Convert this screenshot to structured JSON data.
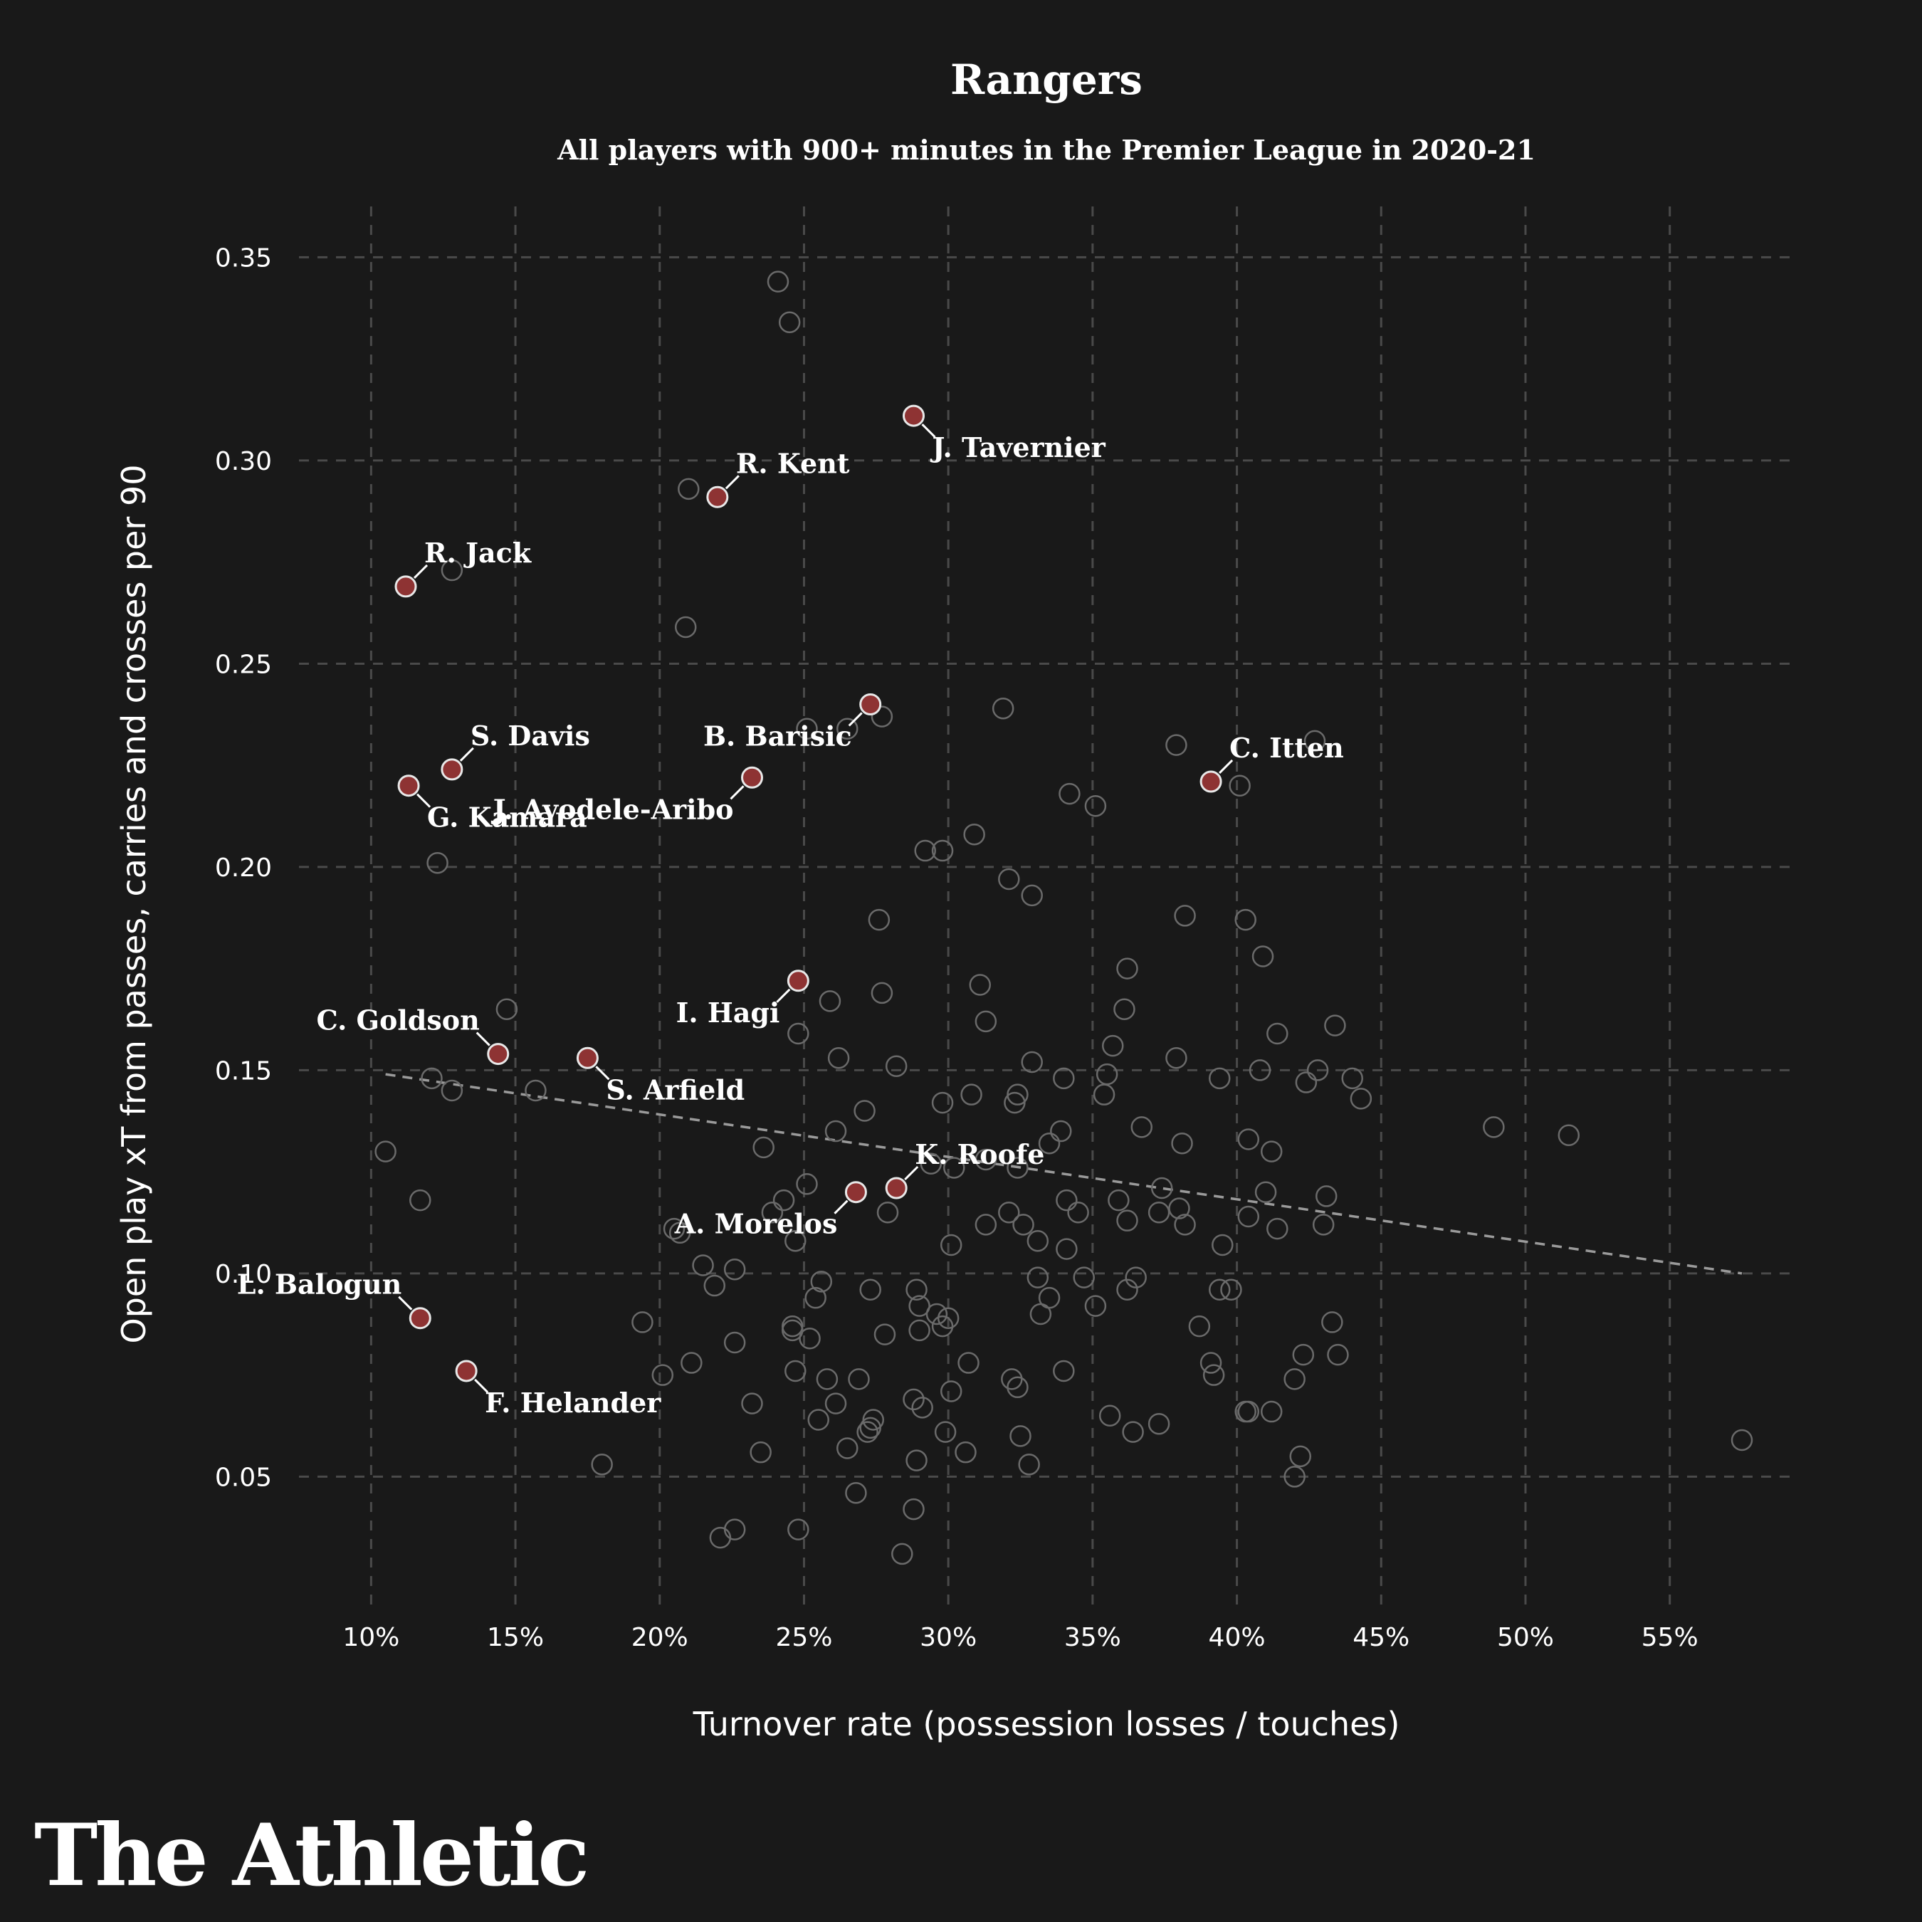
{
  "brand": {
    "logo_text": "The Athletic"
  },
  "colors": {
    "background": "#191919",
    "highlight": "#8e3333",
    "other_points": "#6a6a6a",
    "grid": "#4a4a4a",
    "trend": "#9a9a9a"
  },
  "chart_data": {
    "type": "scatter",
    "title": "Rangers",
    "subtitle": "All players with 900+ minutes in the Premier League in 2020-21",
    "xlabel": "Turnover rate (possession losses / touches)",
    "ylabel": "Open play xT from passes, carries and crosses per 90",
    "x_unit": "percent",
    "xlim": [
      7.5,
      59.3
    ],
    "ylim": [
      0.0175,
      0.3625
    ],
    "x_ticks": [
      10,
      15,
      20,
      25,
      30,
      35,
      40,
      45,
      50,
      55
    ],
    "x_tick_labels": [
      "10%",
      "15%",
      "20%",
      "25%",
      "30%",
      "35%",
      "40%",
      "45%",
      "50%",
      "55%"
    ],
    "y_ticks": [
      0.05,
      0.1,
      0.15,
      0.2,
      0.25,
      0.3,
      0.35
    ],
    "y_tick_labels": [
      "0.05",
      "0.10",
      "0.15",
      "0.20",
      "0.25",
      "0.30",
      "0.35"
    ],
    "grid": true,
    "trendline": {
      "x": [
        10.5,
        57.5
      ],
      "y": [
        0.149,
        0.1
      ]
    },
    "highlighted": [
      {
        "name": "J. Tavernier",
        "x": 28.8,
        "y": 0.311,
        "label_anchor": "below-right"
      },
      {
        "name": "R. Kent",
        "x": 22.0,
        "y": 0.291,
        "label_anchor": "above-right"
      },
      {
        "name": "R. Jack",
        "x": 11.2,
        "y": 0.269,
        "label_anchor": "above-right"
      },
      {
        "name": "B. Barisic",
        "x": 27.3,
        "y": 0.24,
        "label_anchor": "below-left"
      },
      {
        "name": "C. Itten",
        "x": 39.1,
        "y": 0.221,
        "label_anchor": "above-right"
      },
      {
        "name": "S. Davis",
        "x": 12.8,
        "y": 0.224,
        "label_anchor": "above-right"
      },
      {
        "name": "G. Kamara",
        "x": 11.3,
        "y": 0.22,
        "label_anchor": "below-right"
      },
      {
        "name": "J. Ayodele-Aribo",
        "x": 23.2,
        "y": 0.222,
        "label_anchor": "below-left"
      },
      {
        "name": "I. Hagi",
        "x": 24.8,
        "y": 0.172,
        "label_anchor": "below-left"
      },
      {
        "name": "C. Goldson",
        "x": 14.4,
        "y": 0.154,
        "label_anchor": "above-left"
      },
      {
        "name": "S. Arfield",
        "x": 17.5,
        "y": 0.153,
        "label_anchor": "below-right"
      },
      {
        "name": "K. Roofe",
        "x": 28.2,
        "y": 0.121,
        "label_anchor": "above-right"
      },
      {
        "name": "A. Morelos",
        "x": 26.8,
        "y": 0.12,
        "label_anchor": "below-left"
      },
      {
        "name": "L. Balogun",
        "x": 11.7,
        "y": 0.089,
        "label_anchor": "above-left"
      },
      {
        "name": "F. Helander",
        "x": 13.3,
        "y": 0.076,
        "label_anchor": "below-right"
      }
    ],
    "others": [
      [
        24.1,
        0.344
      ],
      [
        24.5,
        0.334
      ],
      [
        21.0,
        0.293
      ],
      [
        20.9,
        0.259
      ],
      [
        12.8,
        0.273
      ],
      [
        25.1,
        0.234
      ],
      [
        26.5,
        0.234
      ],
      [
        27.7,
        0.237
      ],
      [
        31.9,
        0.239
      ],
      [
        37.9,
        0.23
      ],
      [
        42.7,
        0.231
      ],
      [
        40.1,
        0.22
      ],
      [
        34.2,
        0.218
      ],
      [
        35.1,
        0.215
      ],
      [
        29.2,
        0.204
      ],
      [
        29.8,
        0.204
      ],
      [
        30.9,
        0.208
      ],
      [
        12.3,
        0.201
      ],
      [
        32.1,
        0.197
      ],
      [
        32.9,
        0.193
      ],
      [
        27.6,
        0.187
      ],
      [
        38.2,
        0.188
      ],
      [
        40.3,
        0.187
      ],
      [
        36.2,
        0.175
      ],
      [
        40.9,
        0.178
      ],
      [
        31.1,
        0.171
      ],
      [
        27.7,
        0.169
      ],
      [
        25.9,
        0.167
      ],
      [
        31.3,
        0.162
      ],
      [
        36.1,
        0.165
      ],
      [
        14.7,
        0.165
      ],
      [
        24.8,
        0.159
      ],
      [
        41.4,
        0.159
      ],
      [
        43.4,
        0.161
      ],
      [
        35.7,
        0.156
      ],
      [
        26.2,
        0.153
      ],
      [
        28.2,
        0.151
      ],
      [
        32.9,
        0.152
      ],
      [
        37.9,
        0.153
      ],
      [
        12.1,
        0.148
      ],
      [
        12.8,
        0.145
      ],
      [
        15.7,
        0.145
      ],
      [
        29.8,
        0.142
      ],
      [
        30.8,
        0.144
      ],
      [
        32.4,
        0.144
      ],
      [
        32.3,
        0.142
      ],
      [
        34.0,
        0.148
      ],
      [
        35.5,
        0.149
      ],
      [
        35.4,
        0.144
      ],
      [
        39.4,
        0.148
      ],
      [
        40.8,
        0.15
      ],
      [
        42.8,
        0.15
      ],
      [
        42.4,
        0.147
      ],
      [
        44.0,
        0.148
      ],
      [
        44.3,
        0.143
      ],
      [
        27.1,
        0.14
      ],
      [
        26.1,
        0.135
      ],
      [
        33.9,
        0.135
      ],
      [
        33.5,
        0.132
      ],
      [
        36.7,
        0.136
      ],
      [
        38.1,
        0.132
      ],
      [
        40.4,
        0.133
      ],
      [
        41.2,
        0.13
      ],
      [
        48.9,
        0.136
      ],
      [
        51.5,
        0.134
      ],
      [
        10.5,
        0.13
      ],
      [
        23.6,
        0.131
      ],
      [
        29.4,
        0.127
      ],
      [
        30.2,
        0.126
      ],
      [
        31.3,
        0.128
      ],
      [
        32.4,
        0.126
      ],
      [
        25.1,
        0.122
      ],
      [
        11.7,
        0.118
      ],
      [
        24.3,
        0.118
      ],
      [
        23.9,
        0.115
      ],
      [
        27.9,
        0.115
      ],
      [
        32.1,
        0.115
      ],
      [
        32.6,
        0.112
      ],
      [
        31.3,
        0.112
      ],
      [
        34.1,
        0.118
      ],
      [
        34.5,
        0.115
      ],
      [
        35.9,
        0.118
      ],
      [
        36.2,
        0.113
      ],
      [
        37.3,
        0.115
      ],
      [
        37.4,
        0.121
      ],
      [
        38.0,
        0.116
      ],
      [
        38.2,
        0.112
      ],
      [
        40.4,
        0.114
      ],
      [
        41.0,
        0.12
      ],
      [
        41.4,
        0.111
      ],
      [
        43.0,
        0.112
      ],
      [
        43.1,
        0.119
      ],
      [
        20.5,
        0.111
      ],
      [
        20.7,
        0.11
      ],
      [
        24.7,
        0.108
      ],
      [
        30.1,
        0.107
      ],
      [
        33.1,
        0.108
      ],
      [
        34.1,
        0.106
      ],
      [
        39.5,
        0.107
      ],
      [
        21.5,
        0.102
      ],
      [
        21.9,
        0.097
      ],
      [
        22.6,
        0.101
      ],
      [
        25.6,
        0.098
      ],
      [
        25.4,
        0.094
      ],
      [
        27.3,
        0.096
      ],
      [
        28.9,
        0.096
      ],
      [
        29.0,
        0.092
      ],
      [
        29.6,
        0.09
      ],
      [
        29.8,
        0.087
      ],
      [
        30.0,
        0.089
      ],
      [
        33.1,
        0.099
      ],
      [
        33.2,
        0.09
      ],
      [
        33.5,
        0.094
      ],
      [
        34.7,
        0.099
      ],
      [
        35.1,
        0.092
      ],
      [
        36.2,
        0.096
      ],
      [
        36.5,
        0.099
      ],
      [
        38.7,
        0.087
      ],
      [
        39.4,
        0.096
      ],
      [
        39.8,
        0.096
      ],
      [
        19.4,
        0.088
      ],
      [
        22.6,
        0.083
      ],
      [
        24.6,
        0.086
      ],
      [
        24.6,
        0.087
      ],
      [
        25.2,
        0.084
      ],
      [
        27.8,
        0.085
      ],
      [
        29.0,
        0.086
      ],
      [
        20.1,
        0.075
      ],
      [
        21.1,
        0.078
      ],
      [
        24.7,
        0.076
      ],
      [
        25.8,
        0.074
      ],
      [
        26.9,
        0.074
      ],
      [
        30.7,
        0.078
      ],
      [
        32.2,
        0.074
      ],
      [
        32.4,
        0.072
      ],
      [
        34.0,
        0.076
      ],
      [
        39.1,
        0.078
      ],
      [
        39.2,
        0.075
      ],
      [
        42.0,
        0.074
      ],
      [
        42.3,
        0.08
      ],
      [
        43.3,
        0.088
      ],
      [
        43.5,
        0.08
      ],
      [
        23.2,
        0.068
      ],
      [
        25.5,
        0.064
      ],
      [
        26.1,
        0.068
      ],
      [
        27.2,
        0.061
      ],
      [
        27.3,
        0.062
      ],
      [
        27.4,
        0.064
      ],
      [
        28.8,
        0.069
      ],
      [
        29.1,
        0.067
      ],
      [
        29.9,
        0.061
      ],
      [
        30.1,
        0.071
      ],
      [
        35.6,
        0.065
      ],
      [
        36.4,
        0.061
      ],
      [
        37.3,
        0.063
      ],
      [
        40.3,
        0.066
      ],
      [
        40.4,
        0.066
      ],
      [
        41.2,
        0.066
      ],
      [
        26.5,
        0.057
      ],
      [
        23.5,
        0.056
      ],
      [
        18.0,
        0.053
      ],
      [
        28.9,
        0.054
      ],
      [
        30.6,
        0.056
      ],
      [
        32.5,
        0.06
      ],
      [
        32.8,
        0.053
      ],
      [
        42.2,
        0.055
      ],
      [
        42.0,
        0.05
      ],
      [
        57.5,
        0.059
      ],
      [
        26.8,
        0.046
      ],
      [
        28.8,
        0.042
      ],
      [
        22.1,
        0.035
      ],
      [
        22.6,
        0.037
      ],
      [
        24.8,
        0.037
      ],
      [
        28.4,
        0.031
      ]
    ]
  }
}
